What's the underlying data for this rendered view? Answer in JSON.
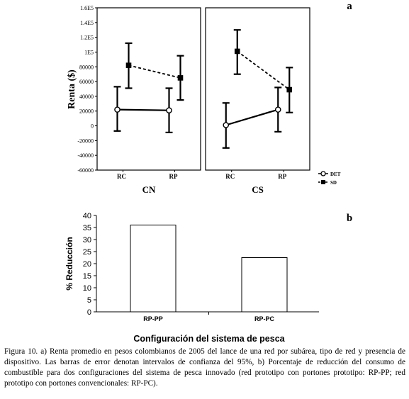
{
  "chart_data": [
    {
      "type": "line",
      "panel_letter": "a",
      "ylabel": "Renta ($)",
      "ylim": [
        -60000,
        160000
      ],
      "yticks": [
        -60000,
        -40000,
        -20000,
        0,
        20000,
        40000,
        60000,
        80000,
        100000,
        120000,
        140000,
        160000
      ],
      "ytick_labels": [
        "-60000",
        "-40000",
        "-20000",
        "0",
        "20000",
        "40000",
        "60000",
        "80000",
        "1E5",
        "1.2E5",
        "1.4E5",
        "1.6E5"
      ],
      "legend_placement": "bottom-right",
      "series": [
        {
          "name": "DET",
          "marker": "open-circle",
          "line": "solid"
        },
        {
          "name": "SD",
          "marker": "filled-square",
          "line": "dashed"
        }
      ],
      "panels": [
        {
          "title": "CN",
          "categories": [
            "RC",
            "RP"
          ],
          "data": {
            "DET": [
              {
                "x": "RC",
                "y": 22000,
                "lower": -7000,
                "upper": 53000
              },
              {
                "x": "RP",
                "y": 21000,
                "lower": -9000,
                "upper": 51000
              }
            ],
            "SD": [
              {
                "x": "RC",
                "y": 82000,
                "lower": 51000,
                "upper": 112000
              },
              {
                "x": "RP",
                "y": 65000,
                "lower": 35000,
                "upper": 95000
              }
            ]
          }
        },
        {
          "title": "CS",
          "categories": [
            "RC",
            "RP"
          ],
          "data": {
            "DET": [
              {
                "x": "RC",
                "y": 1000,
                "lower": -30000,
                "upper": 31000
              },
              {
                "x": "RP",
                "y": 22000,
                "lower": -8000,
                "upper": 52000
              }
            ],
            "SD": [
              {
                "x": "RC",
                "y": 101000,
                "lower": 70000,
                "upper": 130000
              },
              {
                "x": "RP",
                "y": 49000,
                "lower": 18000,
                "upper": 79000
              }
            ]
          }
        }
      ]
    },
    {
      "type": "bar",
      "panel_letter": "b",
      "categories": [
        "RP-PP",
        "RP-PC"
      ],
      "values": [
        36,
        22.5
      ],
      "ylabel": "% Reducción",
      "xlabel": "Configuración del sistema de pesca",
      "ylim": [
        0,
        40
      ],
      "yticks": [
        0,
        5,
        10,
        15,
        20,
        25,
        30,
        35,
        40
      ]
    }
  ],
  "caption": "Figura 10. a) Renta promedio en pesos colombianos de 2005 del lance de una red por subárea, tipo de red y presencia de dispositivo. Las barras de error denotan intervalos de confianza del 95%, b) Porcentaje de reducción del consumo de combustible para dos configuraciones del sistema de pesca innovado (red prototipo con portones prototipo: RP-PP; red prototipo con portones convencionales: RP-PC)."
}
